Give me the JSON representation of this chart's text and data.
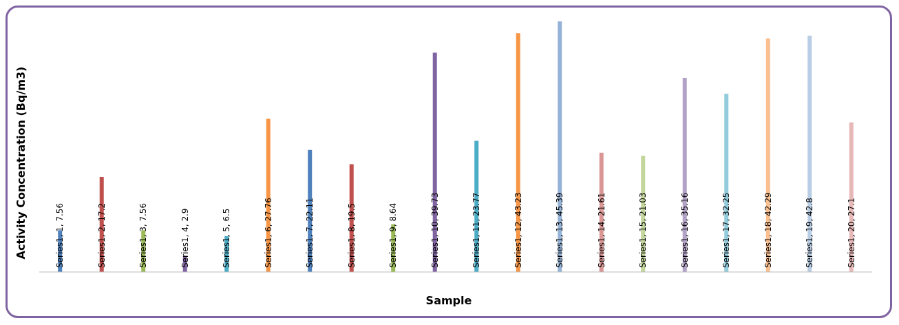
{
  "chart_data": {
    "type": "bar",
    "xlabel": "Sample",
    "ylabel": "Activity Concentration (Bq/m3)",
    "categories": [
      null,
      null,
      null,
      null,
      null,
      null,
      null,
      null,
      null,
      null,
      null,
      null,
      null,
      null,
      null,
      null,
      null,
      null,
      null,
      null
    ],
    "values": [
      7.56,
      17.2,
      7.56,
      2.9,
      6.5,
      27.76,
      22.11,
      19.5,
      8.64,
      39.73,
      23.77,
      43.23,
      45.39,
      21.61,
      21.03,
      35.16,
      32.25,
      42.29,
      42.8,
      27.1
    ],
    "colors": [
      "#4f81bd",
      "#c0504d",
      "#9bbb59",
      "#8064a2",
      "#4bacc6",
      "#f79646",
      "#4f81bd",
      "#c0504d",
      "#9bbb59",
      "#8064a2",
      "#4bacc6",
      "#f79646",
      "#95b3d7",
      "#d99694",
      "#c3d69b",
      "#b3a2c7",
      "#93cddd",
      "#fac090",
      "#b9cde5",
      "#e6b9b8"
    ],
    "value_labels": [
      "Series1, 1, 7.56",
      "Series1, 2, 17.2",
      "Series1, 3, 7.56",
      "Series1, 4, 2.9",
      "Series1, 5, 6.5",
      "Series1, 6, 27.76",
      "Series1, 7, 22.11",
      "Series1, 8, 19.5",
      "Series1, 9, 8.64",
      "Series1, 10, 39.73",
      "Series1, 11, 23.77",
      "Series1, 12, 43.23",
      "Series1, 13, 45.39",
      "Series1, 14, 21.61",
      "Series1, 15, 21.03",
      "Series1, 16, 35.16",
      "Series1, 17, 32.25",
      "Series1, 18, 42.29",
      "Series1, 19, 42.8",
      "Series1, 20, 27.1"
    ]
  }
}
